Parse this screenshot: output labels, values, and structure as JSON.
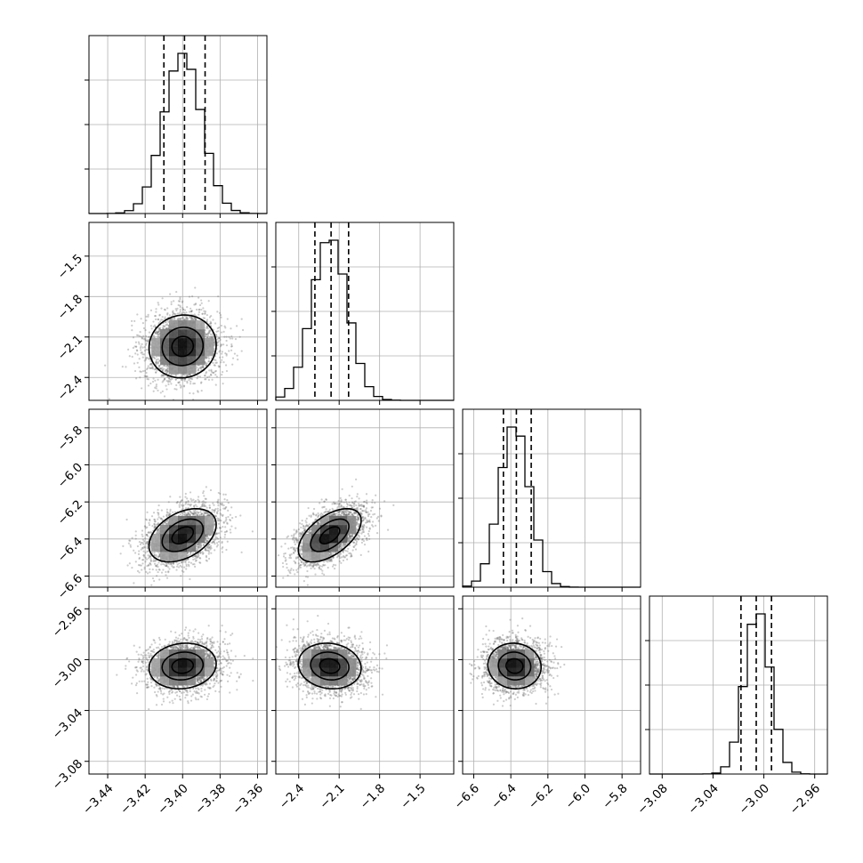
{
  "chart_data": {
    "type": "corner",
    "parameters": [
      {
        "id": "p0",
        "mean": -3.4,
        "sd": 0.01,
        "range": [
          -3.45,
          -3.355
        ],
        "ticks": [
          -3.44,
          -3.42,
          -3.4,
          -3.38,
          -3.36
        ],
        "tick_labels": [
          "−3.44",
          "−3.42",
          "−3.40",
          "−3.38",
          "−3.36"
        ],
        "quantiles": [
          -3.41,
          -3.399,
          -3.388
        ]
      },
      {
        "id": "p1",
        "mean": -2.17,
        "sd": 0.13,
        "range": [
          -2.57,
          -1.25
        ],
        "ticks": [
          -2.4,
          -2.1,
          -1.8,
          -1.5
        ],
        "tick_labels": [
          "−2.4",
          "−2.1",
          "−1.8",
          "−1.5"
        ],
        "quantiles": [
          -2.28,
          -2.16,
          -2.03
        ]
      },
      {
        "id": "p2",
        "mean": -6.38,
        "sd": 0.08,
        "range": [
          -6.66,
          -5.7
        ],
        "ticks": [
          -6.6,
          -6.4,
          -6.2,
          -6.0,
          -5.8
        ],
        "tick_labels": [
          "−6.6",
          "−6.4",
          "−6.2",
          "−6.0",
          "−5.8"
        ],
        "quantiles": [
          -6.44,
          -6.37,
          -6.29
        ]
      },
      {
        "id": "p3",
        "mean": -3.005,
        "sd": 0.01,
        "range": [
          -3.09,
          -2.95
        ],
        "ticks": [
          -3.08,
          -3.04,
          -3.0,
          -2.96
        ],
        "tick_labels": [
          "−3.08",
          "−3.04",
          "−3.00",
          "−2.96"
        ],
        "quantiles": [
          -3.018,
          -3.006,
          -2.994
        ]
      }
    ],
    "correlations": [
      {
        "pair": [
          0,
          1
        ],
        "rho": 0.05
      },
      {
        "pair": [
          0,
          2
        ],
        "rho": 0.4
      },
      {
        "pair": [
          1,
          2
        ],
        "rho": 0.55
      },
      {
        "pair": [
          0,
          3
        ],
        "rho": 0.1
      },
      {
        "pair": [
          1,
          3
        ],
        "rho": -0.1
      },
      {
        "pair": [
          2,
          3
        ],
        "rho": -0.05
      }
    ],
    "samples_per_panel": 2500,
    "histogram_bins": 20,
    "density_bins": 20,
    "contour_levels": [
      0.2,
      0.55,
      0.85
    ],
    "grid": true,
    "colors": {
      "ink": "#000000",
      "grid": "#b0b0b0",
      "points": "#6e6e6e"
    }
  }
}
